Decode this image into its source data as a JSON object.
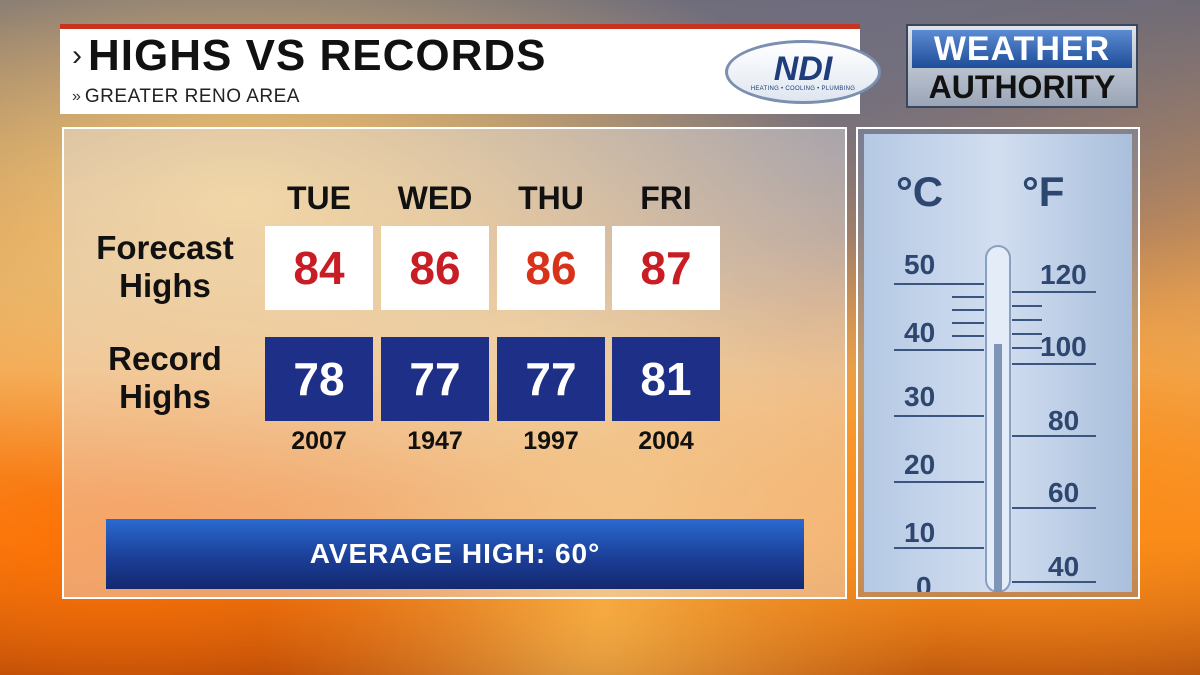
{
  "header": {
    "title": "HIGHS VS RECORDS",
    "subtitle": "GREATER RENO AREA",
    "accent_color": "#c8331f"
  },
  "logos": {
    "ndi": {
      "letters": "NDI",
      "tagline": "HEATING • COOLING • PLUMBING"
    },
    "weather_authority": {
      "line1": "WEATHER",
      "line2": "AUTHORITY"
    }
  },
  "labels": {
    "forecast": "Forecast Highs",
    "record": "Record Highs"
  },
  "days": [
    {
      "day": "TUE",
      "forecast": "84",
      "forecast_color": "#c81d24",
      "record": "78",
      "record_year": "2007"
    },
    {
      "day": "WED",
      "forecast": "86",
      "forecast_color": "#c81d24",
      "record": "77",
      "record_year": "1947"
    },
    {
      "day": "THU",
      "forecast": "86",
      "forecast_color": "#d8321a",
      "record": "77",
      "record_year": "1997"
    },
    {
      "day": "FRI",
      "forecast": "87",
      "forecast_color": "#c81d24",
      "record": "81",
      "record_year": "2004"
    }
  ],
  "average_high": "AVERAGE HIGH:  60°",
  "colors": {
    "record_box": "#1d2f86",
    "average_bar": "#1b3f98"
  },
  "thermometer": {
    "celsius_unit": "°C",
    "fahrenheit_unit": "°F",
    "celsius_ticks": [
      "50",
      "40",
      "30",
      "20",
      "10",
      "0"
    ],
    "fahrenheit_ticks": [
      "120",
      "100",
      "80",
      "60",
      "40"
    ]
  }
}
